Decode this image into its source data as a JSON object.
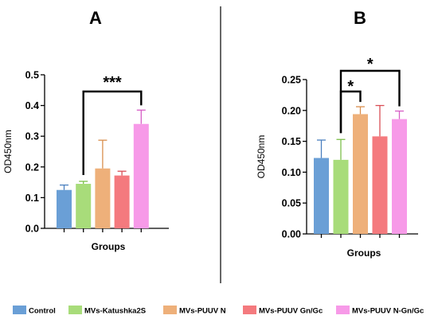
{
  "chart_data": [
    {
      "type": "bar",
      "panel_label": "A",
      "categories": [
        "Control",
        "MVs-Katushka2S",
        "MVs-PUUV N",
        "MVs-PUUV Gn/Gc",
        "MVs-PUUV N-Gn/Gc"
      ],
      "values": [
        0.125,
        0.145,
        0.195,
        0.172,
        0.34
      ],
      "errors": [
        0.016,
        0.008,
        0.092,
        0.014,
        0.045
      ],
      "ylabel": "OD450nm",
      "xlabel": "Groups",
      "ylim": [
        0,
        0.5
      ],
      "yticks": [
        "0.0",
        "0.1",
        "0.2",
        "0.3",
        "0.4",
        "0.5"
      ],
      "significance": [
        {
          "from": 1,
          "to": 4,
          "label": "***"
        }
      ]
    },
    {
      "type": "bar",
      "panel_label": "B",
      "categories": [
        "Control",
        "MVs-Katushka2S",
        "MVs-PUUV N",
        "MVs-PUUV Gn/Gc",
        "MVs-PUUV N-Gn/Gc"
      ],
      "values": [
        0.123,
        0.12,
        0.194,
        0.158,
        0.186
      ],
      "errors": [
        0.029,
        0.033,
        0.012,
        0.05,
        0.013
      ],
      "ylabel": "OD450nm",
      "xlabel": "Groups",
      "ylim": [
        0,
        0.25
      ],
      "yticks": [
        "0.00",
        "0.05",
        "0.10",
        "0.15",
        "0.20",
        "0.25"
      ],
      "significance": [
        {
          "from": 1,
          "to": 2,
          "label": "*"
        },
        {
          "from": 1,
          "to": 4,
          "label": "*"
        }
      ]
    }
  ],
  "legend": [
    {
      "label": "Control",
      "color": "#6a9fd6"
    },
    {
      "label": "MVs-Katushka2S",
      "color": "#a8dc7a"
    },
    {
      "label": "MVs-PUUV N",
      "color": "#eeb07a"
    },
    {
      "label": "MVs-PUUV Gn/Gc",
      "color": "#f47a7e"
    },
    {
      "label": "MVs-PUUV N-Gn/Gc",
      "color": "#f79ae8"
    }
  ],
  "error_colors": [
    "#4a7fbf",
    "#7cbf4a",
    "#d98f4e",
    "#d94f56",
    "#d65ec6"
  ]
}
